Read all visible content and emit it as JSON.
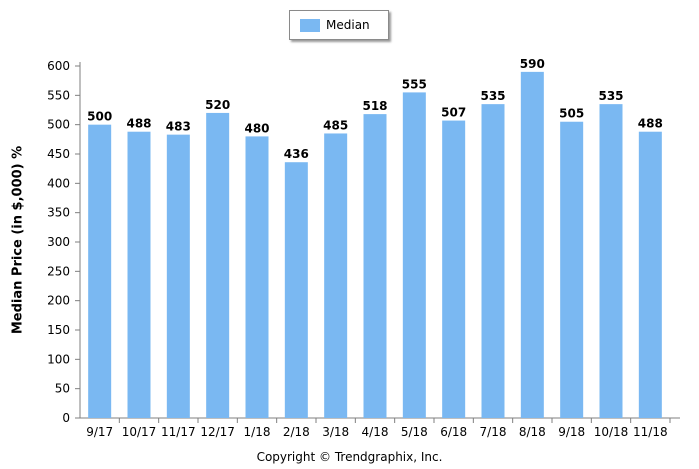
{
  "chart_data": {
    "type": "bar",
    "categories": [
      "9/17",
      "10/17",
      "11/17",
      "12/17",
      "1/18",
      "2/18",
      "3/18",
      "4/18",
      "5/18",
      "6/18",
      "7/18",
      "8/18",
      "9/18",
      "10/18",
      "11/18"
    ],
    "series": [
      {
        "name": "Median",
        "values": [
          500,
          488,
          483,
          520,
          480,
          436,
          485,
          518,
          555,
          507,
          535,
          590,
          505,
          535,
          488
        ]
      }
    ],
    "ylabel": "Median Price (in $,000) %",
    "xlabel": "",
    "ylim": [
      0,
      600
    ],
    "yticks": [
      0,
      50,
      100,
      150,
      200,
      250,
      300,
      350,
      400,
      450,
      500,
      550,
      600
    ],
    "grid": false,
    "legend": "top-center",
    "bar_color": "#7ab8f2",
    "data_labels": true
  },
  "footer": {
    "copyright": "Copyright © Trendgraphix, Inc."
  }
}
